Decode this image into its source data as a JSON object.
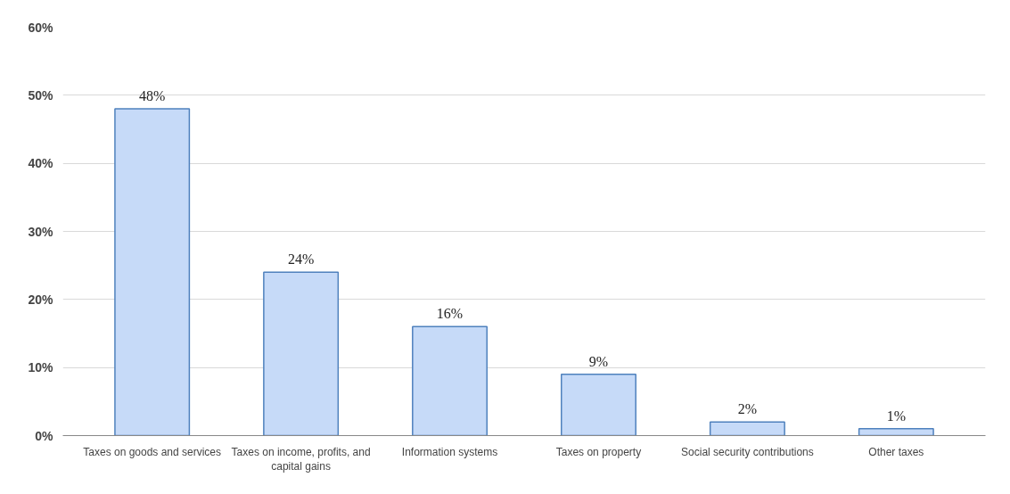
{
  "chart_data": {
    "type": "bar",
    "categories": [
      "Taxes on goods and services",
      "Taxes on income, profits, and capital gains",
      "Information systems",
      "Taxes on property",
      "Social security contributions",
      "Other taxes"
    ],
    "values": [
      48,
      24,
      16,
      9,
      2,
      1
    ],
    "value_labels": [
      "48%",
      "24%",
      "16%",
      "9%",
      "2%",
      "1%"
    ],
    "color": "#c6daf8",
    "ylim": [
      0,
      60
    ],
    "yticks": [
      {
        "value": 0,
        "label": "0%"
      },
      {
        "value": 10,
        "label": "10%"
      },
      {
        "value": 20,
        "label": "20%"
      },
      {
        "value": 30,
        "label": "30%"
      },
      {
        "value": 40,
        "label": "40%"
      },
      {
        "value": 50,
        "label": "50%"
      },
      {
        "value": 60,
        "label": "60%"
      }
    ],
    "grid": "y"
  }
}
